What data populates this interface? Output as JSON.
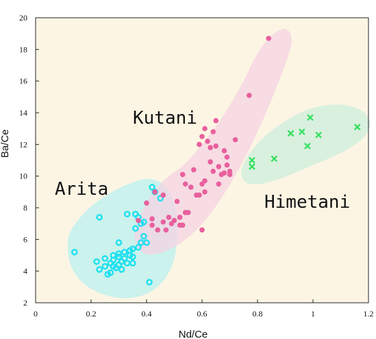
{
  "chart_data": {
    "type": "scatter",
    "xlabel": "Nd/Ce",
    "ylabel": "Ba/Ce",
    "xlim": [
      0,
      1.2
    ],
    "ylim": [
      2,
      20
    ],
    "x_ticks": [
      "0",
      "0.2",
      "0.4",
      "0.6",
      "0.8",
      "1",
      "1.2"
    ],
    "y_ticks": [
      "2",
      "4",
      "6",
      "8",
      "10",
      "12",
      "14",
      "16",
      "18",
      "20"
    ],
    "background_color": "#fdf5e4",
    "grid": false,
    "groups": [
      {
        "name": "Arita",
        "marker": "open-circle",
        "color": "#1ee0f0",
        "region_color": "#b9f0f0",
        "points": [
          [
            0.14,
            5.2
          ],
          [
            0.22,
            4.6
          ],
          [
            0.23,
            7.4
          ],
          [
            0.23,
            4.1
          ],
          [
            0.25,
            4.3
          ],
          [
            0.25,
            4.8
          ],
          [
            0.26,
            3.8
          ],
          [
            0.27,
            4.5
          ],
          [
            0.27,
            3.9
          ],
          [
            0.28,
            4.3
          ],
          [
            0.28,
            4.7
          ],
          [
            0.28,
            5.0
          ],
          [
            0.29,
            4.2
          ],
          [
            0.3,
            4.9
          ],
          [
            0.3,
            4.4
          ],
          [
            0.3,
            5.8
          ],
          [
            0.3,
            5.1
          ],
          [
            0.31,
            4.6
          ],
          [
            0.31,
            4.1
          ],
          [
            0.32,
            5.2
          ],
          [
            0.32,
            4.8
          ],
          [
            0.33,
            4.5
          ],
          [
            0.33,
            7.6
          ],
          [
            0.34,
            5.0
          ],
          [
            0.34,
            5.3
          ],
          [
            0.35,
            5.4
          ],
          [
            0.35,
            4.9
          ],
          [
            0.35,
            4.5
          ],
          [
            0.36,
            7.6
          ],
          [
            0.36,
            6.7
          ],
          [
            0.37,
            7.4
          ],
          [
            0.37,
            5.5
          ],
          [
            0.38,
            5.8
          ],
          [
            0.38,
            7.0
          ],
          [
            0.39,
            7.1
          ],
          [
            0.39,
            6.2
          ],
          [
            0.4,
            5.8
          ],
          [
            0.41,
            3.3
          ],
          [
            0.42,
            9.3
          ],
          [
            0.43,
            9.0
          ],
          [
            0.45,
            8.6
          ]
        ]
      },
      {
        "name": "Kutani",
        "marker": "filled-circle",
        "color": "#e8609e",
        "region_color": "#f4d3e3",
        "points": [
          [
            0.37,
            7.2
          ],
          [
            0.4,
            8.3
          ],
          [
            0.42,
            7.3
          ],
          [
            0.42,
            6.9
          ],
          [
            0.43,
            9.0
          ],
          [
            0.44,
            6.6
          ],
          [
            0.46,
            8.8
          ],
          [
            0.46,
            7.1
          ],
          [
            0.47,
            6.6
          ],
          [
            0.48,
            7.4
          ],
          [
            0.49,
            7.0
          ],
          [
            0.5,
            7.2
          ],
          [
            0.51,
            8.4
          ],
          [
            0.52,
            6.9
          ],
          [
            0.52,
            7.4
          ],
          [
            0.53,
            6.9
          ],
          [
            0.53,
            10.1
          ],
          [
            0.54,
            9.5
          ],
          [
            0.54,
            7.7
          ],
          [
            0.55,
            7.7
          ],
          [
            0.56,
            9.3
          ],
          [
            0.57,
            10.4
          ],
          [
            0.58,
            8.8
          ],
          [
            0.59,
            12.0
          ],
          [
            0.59,
            8.8
          ],
          [
            0.6,
            12.5
          ],
          [
            0.6,
            9.5
          ],
          [
            0.6,
            6.6
          ],
          [
            0.61,
            13.0
          ],
          [
            0.61,
            9.0
          ],
          [
            0.61,
            9.7
          ],
          [
            0.62,
            12.2
          ],
          [
            0.63,
            10.9
          ],
          [
            0.63,
            11.8
          ],
          [
            0.64,
            12.8
          ],
          [
            0.64,
            10.3
          ],
          [
            0.65,
            13.5
          ],
          [
            0.65,
            11.9
          ],
          [
            0.66,
            10.6
          ],
          [
            0.66,
            9.5
          ],
          [
            0.67,
            10.1
          ],
          [
            0.68,
            11.6
          ],
          [
            0.68,
            10.2
          ],
          [
            0.69,
            11.2
          ],
          [
            0.69,
            10.7
          ],
          [
            0.7,
            10.3
          ],
          [
            0.7,
            10.1
          ],
          [
            0.72,
            12.3
          ],
          [
            0.77,
            15.1
          ],
          [
            0.84,
            18.7
          ]
        ]
      },
      {
        "name": "Himetani",
        "marker": "cross",
        "color": "#38e060",
        "region_color": "#cceddd",
        "points": [
          [
            0.78,
            10.6
          ],
          [
            0.78,
            11.0
          ],
          [
            0.86,
            11.1
          ],
          [
            0.92,
            12.7
          ],
          [
            0.96,
            12.8
          ],
          [
            0.98,
            11.9
          ],
          [
            0.99,
            13.7
          ],
          [
            1.02,
            12.6
          ],
          [
            1.16,
            13.1
          ]
        ]
      }
    ]
  }
}
